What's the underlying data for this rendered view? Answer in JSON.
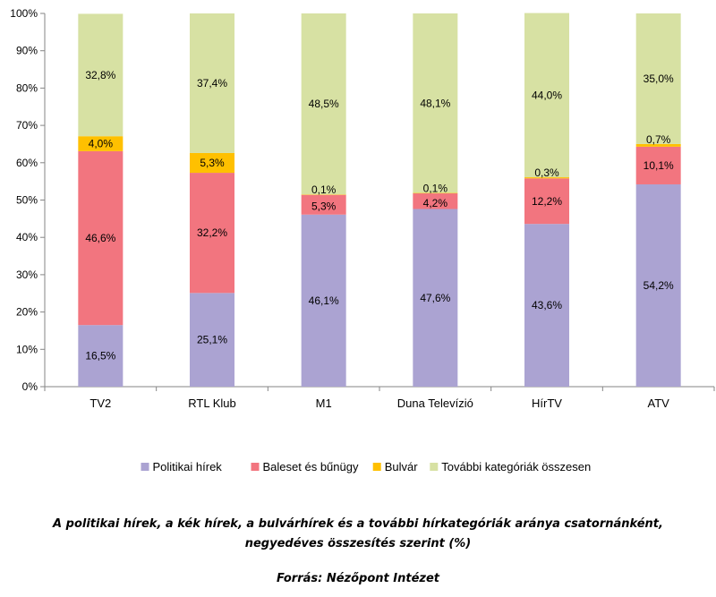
{
  "chart_data": {
    "type": "bar",
    "stacked": true,
    "categories": [
      "TV2",
      "RTL Klub",
      "M1",
      "Duna Televízió",
      "HírTV",
      "ATV"
    ],
    "series": [
      {
        "name": "Politikai hírek",
        "color": "#aba3d2",
        "values": [
          16.5,
          25.1,
          46.1,
          47.6,
          43.6,
          54.2
        ],
        "labels": [
          "16,5%",
          "25,1%",
          "46,1%",
          "47,6%",
          "43,6%",
          "54,2%"
        ]
      },
      {
        "name": "Baleset és bűnügy",
        "color": "#f2757f",
        "values": [
          46.6,
          32.2,
          5.3,
          4.2,
          12.2,
          10.1
        ],
        "labels": [
          "46,6%",
          "32,2%",
          "5,3%",
          "4,2%",
          "12,2%",
          "10,1%"
        ]
      },
      {
        "name": "Bulvár",
        "color": "#ffc000",
        "values": [
          4.0,
          5.3,
          0.1,
          0.1,
          0.3,
          0.7
        ],
        "labels": [
          "4,0%",
          "5,3%",
          "0,1%",
          "0,1%",
          "0,3%",
          "0,7%"
        ]
      },
      {
        "name": "További kategóriák összesen",
        "color": "#d7e1a3",
        "values": [
          32.8,
          37.4,
          48.5,
          48.1,
          44.0,
          35.0
        ],
        "labels": [
          "32,8%",
          "37,4%",
          "48,5%",
          "48,1%",
          "44,0%",
          "35,0%"
        ]
      }
    ],
    "yticks": [
      "0%",
      "10%",
      "20%",
      "30%",
      "40%",
      "50%",
      "60%",
      "70%",
      "80%",
      "90%",
      "100%"
    ],
    "ylim": [
      0,
      100
    ],
    "grid": false,
    "legend_position": "bottom"
  },
  "caption": "A politikai hírek, a kék hírek, a bulvárhírek és a további hírkategóriák aránya csatornánként, negyedéves összesítés szerint (%)",
  "source": "Forrás: Nézőpont Intézet"
}
